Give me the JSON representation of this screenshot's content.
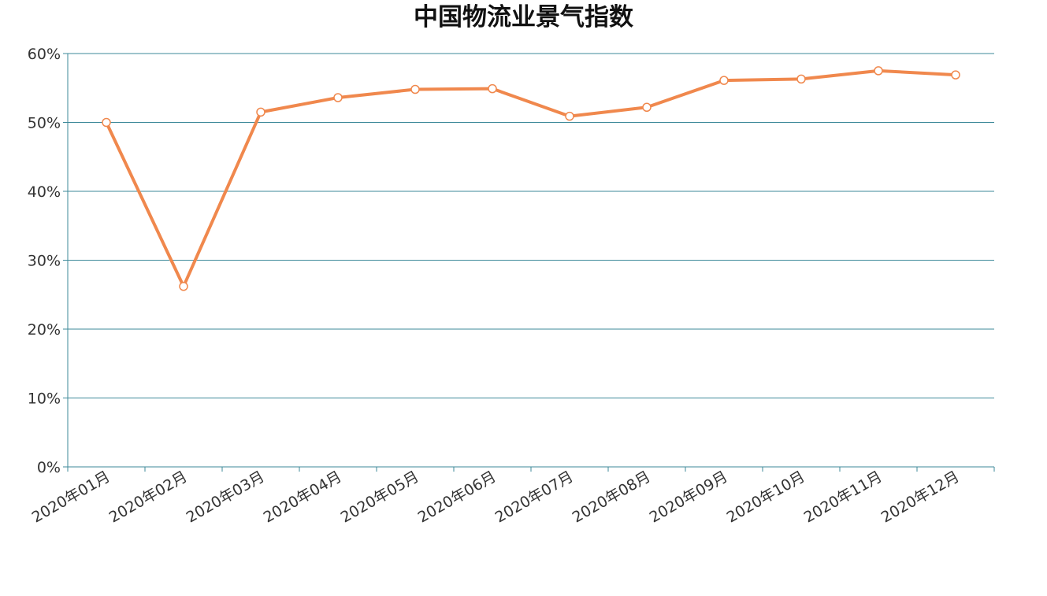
{
  "chart_data": {
    "type": "line",
    "title": "中国物流业景气指数",
    "xlabel": "",
    "ylabel": "",
    "categories": [
      "2020年01月",
      "2020年02月",
      "2020年03月",
      "2020年04月",
      "2020年05月",
      "2020年06月",
      "2020年07月",
      "2020年08月",
      "2020年09月",
      "2020年10月",
      "2020年11月",
      "2020年12月"
    ],
    "series": [
      {
        "values": [
          50.0,
          26.2,
          51.5,
          53.6,
          54.8,
          54.9,
          50.9,
          52.2,
          56.1,
          56.3,
          57.5,
          56.9
        ]
      }
    ],
    "ylim": [
      0,
      60
    ],
    "yticks": [
      0,
      10,
      20,
      30,
      40,
      50,
      60
    ],
    "ytick_labels": [
      "0%",
      "10%",
      "20%",
      "30%",
      "40%",
      "50%",
      "60%"
    ],
    "grid": true,
    "legend": "none",
    "colors": {
      "line": "#f0884d",
      "marker_fill": "#ffffff",
      "grid": "#3e8a9a",
      "axis": "#3e8a9a",
      "text": "#333333"
    }
  }
}
